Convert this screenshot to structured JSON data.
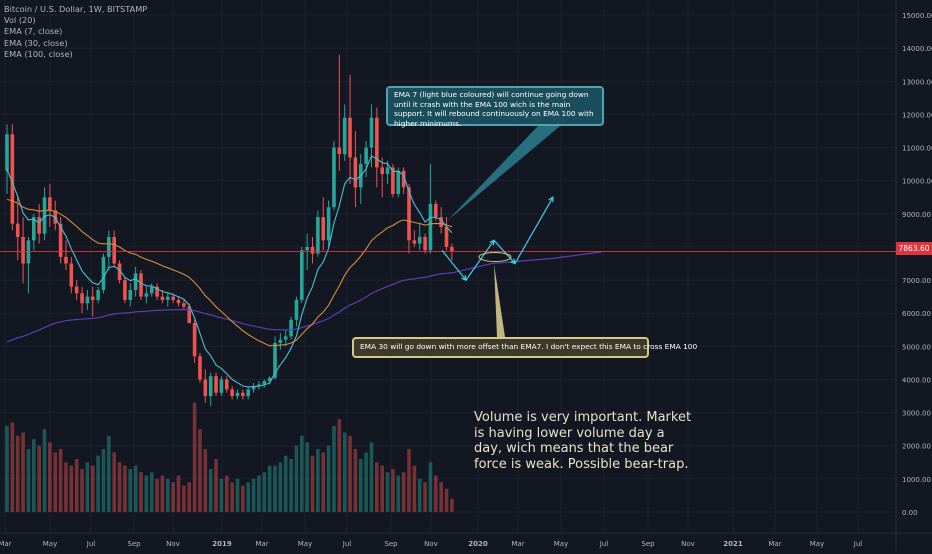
{
  "legend": {
    "symbol": "Bitcoin / U.S. Dollar, 1W, BITSTAMP",
    "vol": "Vol (20)",
    "ema7": "EMA (7, close)",
    "ema30": "EMA (30, close)",
    "ema100": "EMA (100, close)"
  },
  "current_price": "7863.60",
  "annotations": {
    "ema7_note": "EMA 7 (light blue coloured) will continue going down until it crash with the EMA 100 wich is the main support. It will rebound continuously on EMA 100 with higher minimums.",
    "ema30_note": "EMA 30 will go down with more offset than EMA7. I don't expect this EMA to cross EMA 100",
    "volume_note": "Volume is very important. Market is having lower volume day a day, wich means that the bear force is weak. Possible bear-trap."
  },
  "colors": {
    "background": "#131722",
    "grid": "#1e2230",
    "up": "#26a69a",
    "down": "#ef5350",
    "ema7": "#47c1d4",
    "ema30": "#d88c3a",
    "ema100": "#5b3fb0",
    "price_line": "#e0353f",
    "projection": "#3fd0e0"
  },
  "chart_data": {
    "type": "candlestick",
    "title": "Bitcoin / U.S. Dollar, 1W, BITSTAMP",
    "x_ticks": [
      "Mar",
      "May",
      "Jul",
      "Sep",
      "Nov",
      "2019",
      "Mar",
      "May",
      "Jul",
      "Sep",
      "Nov",
      "2020",
      "Mar",
      "May",
      "Jul",
      "Sep",
      "Nov",
      "2021",
      "Mar",
      "May",
      "Jul"
    ],
    "y_ticks": [
      "15000.00",
      "14000.00",
      "13000.00",
      "12000.00",
      "11000.00",
      "10000.00",
      "9000.00",
      "8000.00",
      "7000.00",
      "6000.00",
      "5000.00",
      "4000.00",
      "3000.00",
      "2000.00",
      "1000.00",
      "0.00"
    ],
    "ylim": [
      -300,
      15300
    ],
    "series_names": [
      "EMA (7, close)",
      "EMA (30, close)",
      "EMA (100, close)"
    ],
    "candles": [
      {
        "o": 10300,
        "h": 11700,
        "l": 9600,
        "c": 11400
      },
      {
        "o": 11400,
        "h": 11700,
        "l": 8500,
        "c": 8700
      },
      {
        "o": 8700,
        "h": 9500,
        "l": 7600,
        "c": 8300
      },
      {
        "o": 8300,
        "h": 8900,
        "l": 6900,
        "c": 7500
      },
      {
        "o": 7500,
        "h": 8300,
        "l": 6600,
        "c": 8200
      },
      {
        "o": 8200,
        "h": 9000,
        "l": 7900,
        "c": 8900
      },
      {
        "o": 8900,
        "h": 9300,
        "l": 8100,
        "c": 8400
      },
      {
        "o": 8400,
        "h": 9800,
        "l": 8200,
        "c": 9500
      },
      {
        "o": 9500,
        "h": 9900,
        "l": 8600,
        "c": 9100
      },
      {
        "o": 9100,
        "h": 9400,
        "l": 8500,
        "c": 8700
      },
      {
        "o": 8700,
        "h": 8900,
        "l": 7500,
        "c": 7700
      },
      {
        "o": 7700,
        "h": 8200,
        "l": 7300,
        "c": 7500
      },
      {
        "o": 7500,
        "h": 7700,
        "l": 6600,
        "c": 6800
      },
      {
        "o": 6800,
        "h": 7000,
        "l": 6400,
        "c": 6600
      },
      {
        "o": 6600,
        "h": 6800,
        "l": 6000,
        "c": 6300
      },
      {
        "o": 6300,
        "h": 6700,
        "l": 6100,
        "c": 6500
      },
      {
        "o": 6500,
        "h": 6800,
        "l": 5900,
        "c": 6400
      },
      {
        "o": 6400,
        "h": 6800,
        "l": 6300,
        "c": 6700
      },
      {
        "o": 6700,
        "h": 7800,
        "l": 6600,
        "c": 7700
      },
      {
        "o": 7700,
        "h": 8500,
        "l": 7300,
        "c": 8300
      },
      {
        "o": 8300,
        "h": 8500,
        "l": 7400,
        "c": 7500
      },
      {
        "o": 7500,
        "h": 7600,
        "l": 6900,
        "c": 7000
      },
      {
        "o": 7000,
        "h": 7100,
        "l": 6300,
        "c": 6400
      },
      {
        "o": 6400,
        "h": 6900,
        "l": 6200,
        "c": 6700
      },
      {
        "o": 6700,
        "h": 7400,
        "l": 6500,
        "c": 7200
      },
      {
        "o": 7200,
        "h": 7300,
        "l": 6400,
        "c": 6500
      },
      {
        "o": 6500,
        "h": 6800,
        "l": 6300,
        "c": 6600
      },
      {
        "o": 6600,
        "h": 6900,
        "l": 6500,
        "c": 6800
      },
      {
        "o": 6800,
        "h": 6900,
        "l": 6400,
        "c": 6500
      },
      {
        "o": 6500,
        "h": 6700,
        "l": 6300,
        "c": 6400
      },
      {
        "o": 6400,
        "h": 6600,
        "l": 6200,
        "c": 6500
      },
      {
        "o": 6500,
        "h": 6600,
        "l": 6300,
        "c": 6400
      },
      {
        "o": 6400,
        "h": 6500,
        "l": 6200,
        "c": 6300
      },
      {
        "o": 6300,
        "h": 6400,
        "l": 6100,
        "c": 6200
      },
      {
        "o": 6200,
        "h": 6300,
        "l": 5700,
        "c": 5700
      },
      {
        "o": 5700,
        "h": 5800,
        "l": 4500,
        "c": 4700
      },
      {
        "o": 4700,
        "h": 4800,
        "l": 3900,
        "c": 4000
      },
      {
        "o": 4000,
        "h": 4300,
        "l": 3300,
        "c": 3500
      },
      {
        "o": 3500,
        "h": 4200,
        "l": 3200,
        "c": 4100
      },
      {
        "o": 4100,
        "h": 4200,
        "l": 3500,
        "c": 3600
      },
      {
        "o": 3600,
        "h": 4100,
        "l": 3500,
        "c": 4000
      },
      {
        "o": 4000,
        "h": 4100,
        "l": 3600,
        "c": 3700
      },
      {
        "o": 3700,
        "h": 3800,
        "l": 3400,
        "c": 3500
      },
      {
        "o": 3500,
        "h": 3700,
        "l": 3400,
        "c": 3600
      },
      {
        "o": 3600,
        "h": 3700,
        "l": 3400,
        "c": 3500
      },
      {
        "o": 3500,
        "h": 3800,
        "l": 3400,
        "c": 3700
      },
      {
        "o": 3700,
        "h": 3900,
        "l": 3600,
        "c": 3800
      },
      {
        "o": 3800,
        "h": 3950,
        "l": 3700,
        "c": 3850
      },
      {
        "o": 3850,
        "h": 4000,
        "l": 3750,
        "c": 3950
      },
      {
        "o": 3950,
        "h": 4100,
        "l": 3850,
        "c": 4050
      },
      {
        "o": 4050,
        "h": 5300,
        "l": 4000,
        "c": 5100
      },
      {
        "o": 5100,
        "h": 5400,
        "l": 4900,
        "c": 5200
      },
      {
        "o": 5200,
        "h": 5500,
        "l": 5000,
        "c": 5300
      },
      {
        "o": 5300,
        "h": 5900,
        "l": 5200,
        "c": 5800
      },
      {
        "o": 5800,
        "h": 6500,
        "l": 5600,
        "c": 6400
      },
      {
        "o": 6400,
        "h": 8000,
        "l": 6300,
        "c": 7900
      },
      {
        "o": 7900,
        "h": 8400,
        "l": 7300,
        "c": 8000
      },
      {
        "o": 8000,
        "h": 8300,
        "l": 7500,
        "c": 7800
      },
      {
        "o": 7800,
        "h": 9100,
        "l": 7700,
        "c": 8900
      },
      {
        "o": 8900,
        "h": 9500,
        "l": 7900,
        "c": 8200
      },
      {
        "o": 8200,
        "h": 9400,
        "l": 8000,
        "c": 9200
      },
      {
        "o": 9200,
        "h": 11200,
        "l": 9100,
        "c": 11000
      },
      {
        "o": 11000,
        "h": 13800,
        "l": 10300,
        "c": 10800
      },
      {
        "o": 10800,
        "h": 12300,
        "l": 10600,
        "c": 11900
      },
      {
        "o": 11900,
        "h": 13200,
        "l": 9900,
        "c": 10700
      },
      {
        "o": 10700,
        "h": 11500,
        "l": 9200,
        "c": 9800
      },
      {
        "o": 9800,
        "h": 10800,
        "l": 9300,
        "c": 10500
      },
      {
        "o": 10500,
        "h": 11200,
        "l": 10100,
        "c": 11000
      },
      {
        "o": 11000,
        "h": 12300,
        "l": 10400,
        "c": 11900
      },
      {
        "o": 11900,
        "h": 12200,
        "l": 9800,
        "c": 10400
      },
      {
        "o": 10400,
        "h": 10700,
        "l": 9500,
        "c": 10200
      },
      {
        "o": 10200,
        "h": 10600,
        "l": 9900,
        "c": 10400
      },
      {
        "o": 10400,
        "h": 10500,
        "l": 9500,
        "c": 9600
      },
      {
        "o": 9600,
        "h": 10400,
        "l": 9500,
        "c": 10300
      },
      {
        "o": 10300,
        "h": 10400,
        "l": 9600,
        "c": 9800
      },
      {
        "o": 9800,
        "h": 9900,
        "l": 7800,
        "c": 8200
      },
      {
        "o": 8200,
        "h": 8500,
        "l": 8000,
        "c": 8100
      },
      {
        "o": 8100,
        "h": 8700,
        "l": 7900,
        "c": 8300
      },
      {
        "o": 8300,
        "h": 8400,
        "l": 7800,
        "c": 7900
      },
      {
        "o": 7900,
        "h": 10500,
        "l": 7800,
        "c": 9300
      },
      {
        "o": 9300,
        "h": 9400,
        "l": 8800,
        "c": 8900
      },
      {
        "o": 8900,
        "h": 9200,
        "l": 8400,
        "c": 8600
      },
      {
        "o": 8600,
        "h": 8900,
        "l": 7900,
        "c": 8000
      },
      {
        "o": 8000,
        "h": 8100,
        "l": 7600,
        "c": 7863.6
      }
    ],
    "volume": [
      2600,
      2700,
      2300,
      2400,
      1900,
      2200,
      2000,
      2500,
      2100,
      1800,
      1900,
      1500,
      1400,
      1600,
      1300,
      1500,
      1400,
      1700,
      1900,
      2300,
      1800,
      1500,
      1400,
      1300,
      1400,
      1200,
      1100,
      1200,
      1000,
      1100,
      1000,
      900,
      1100,
      800,
      900,
      3300,
      2500,
      1900,
      1300,
      1600,
      1000,
      1100,
      900,
      1000,
      800,
      900,
      1000,
      1100,
      1200,
      1400,
      1400,
      1500,
      1700,
      1600,
      2000,
      2300,
      2100,
      1700,
      1900,
      1800,
      2000,
      2600,
      2800,
      2400,
      2300,
      1900,
      1600,
      1800,
      2100,
      1500,
      1400,
      1200,
      1300,
      1100,
      1200,
      1900,
      1400,
      1000,
      900,
      1500,
      1100,
      900,
      700,
      400
    ]
  }
}
